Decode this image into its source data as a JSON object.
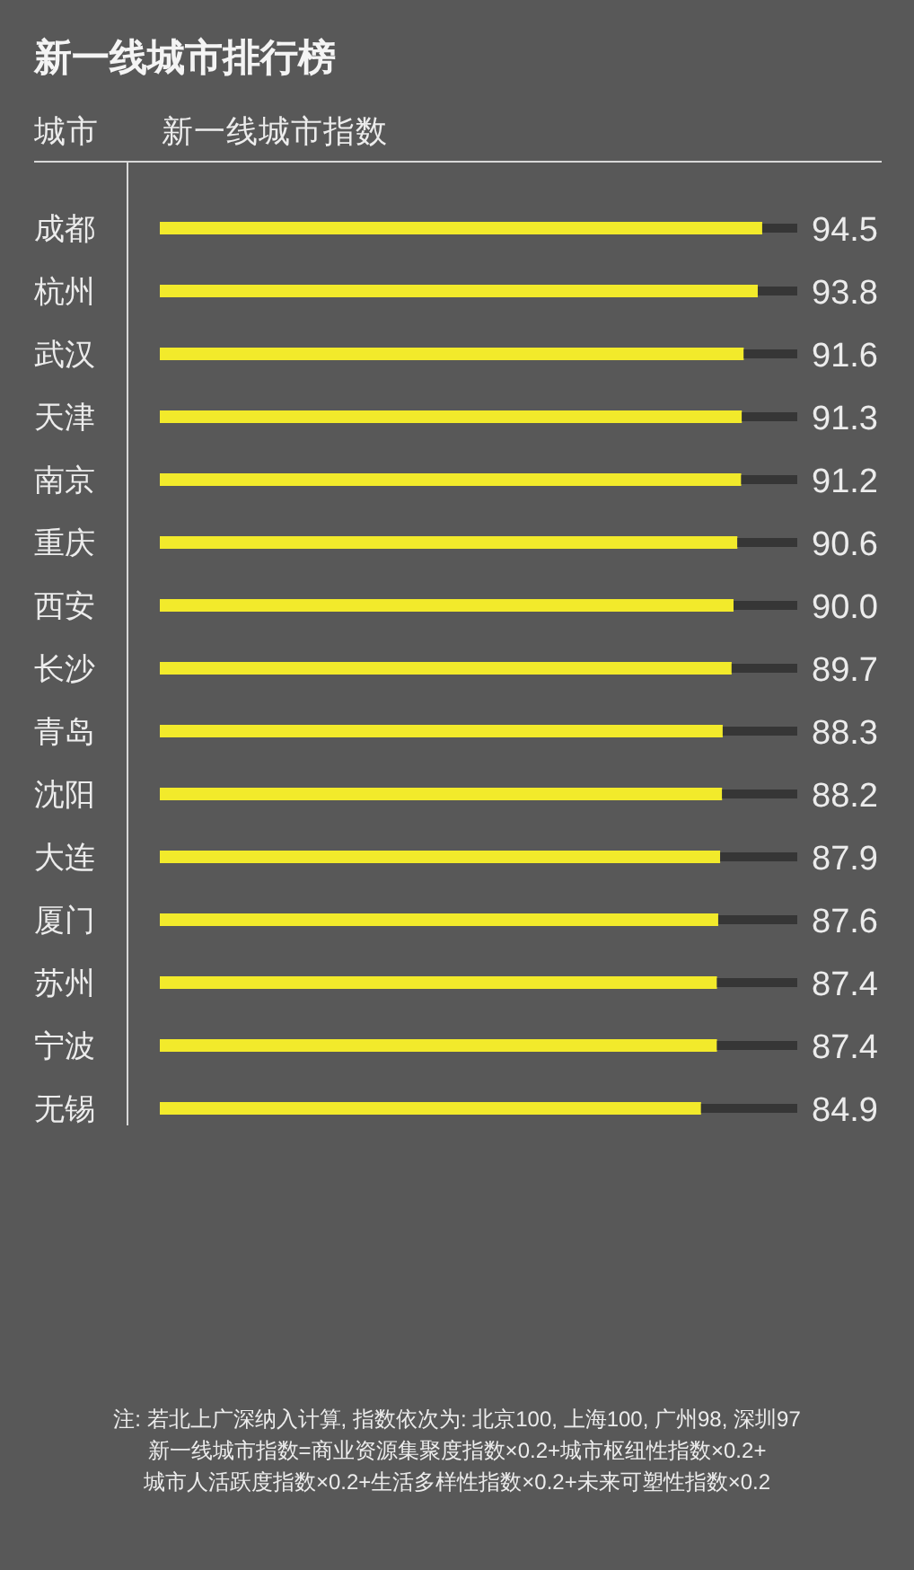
{
  "chart_data": {
    "type": "bar",
    "orientation": "horizontal",
    "stacked": true,
    "title": "新一线城市排行榜",
    "ylabel": "城市",
    "xlabel": "新一线城市指数",
    "categories": [
      "成都",
      "杭州",
      "武汉",
      "天津",
      "南京",
      "重庆",
      "西安",
      "长沙",
      "青岛",
      "沈阳",
      "大连",
      "厦门",
      "苏州",
      "宁波",
      "无锡"
    ],
    "series": [
      {
        "color": "#f2ea2b",
        "values": [
          94.5,
          93.8,
          91.6,
          91.3,
          91.2,
          90.6,
          90.0,
          89.7,
          88.3,
          88.2,
          87.9,
          87.6,
          87.4,
          87.4,
          84.9
        ],
        "value_labels": [
          "94.5",
          "93.8",
          "91.6",
          "91.3",
          "91.2",
          "90.6",
          "90.0",
          "89.7",
          "88.3",
          "88.2",
          "87.9",
          "87.6",
          "87.4",
          "87.4",
          "84.9"
        ]
      },
      {
        "color": "#363636",
        "values": [
          5.5,
          6.2,
          8.4,
          8.7,
          8.8,
          9.4,
          10.0,
          10.3,
          11.7,
          11.8,
          12.1,
          12.4,
          12.6,
          12.6,
          15.1
        ]
      }
    ],
    "xlim": [
      0,
      100
    ],
    "tick_labels": "y",
    "annotations": [
      "注: 若北上广深纳入计算, 指数依次为: 北京100, 上海100, 广州98, 深圳97",
      "新一线城市指数=商业资源集聚度指数×0.2+城市枢纽性指数×0.2+",
      "城市人活跃度指数×0.2+生活多样性指数×0.2+未来可塑性指数×0.2"
    ]
  }
}
